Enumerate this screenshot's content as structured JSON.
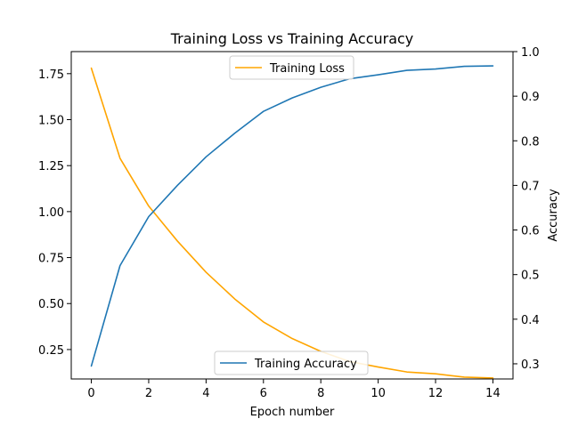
{
  "chart_data": {
    "type": "line",
    "title": "Training Loss vs Training Accuracy",
    "xlabel": "Epoch number",
    "ylabel_left": "",
    "ylabel_right": "Accuracy",
    "x": [
      0,
      1,
      2,
      3,
      4,
      5,
      6,
      7,
      8,
      9,
      10,
      11,
      12,
      13,
      14
    ],
    "xlim": [
      -0.7,
      14.7
    ],
    "xticks": [
      0,
      2,
      4,
      6,
      8,
      10,
      12,
      14
    ],
    "xtick_labels": [
      "0",
      "2",
      "4",
      "6",
      "8",
      "10",
      "12",
      "14"
    ],
    "ylim_left": [
      0.09,
      1.87
    ],
    "yticks_left": [
      0.25,
      0.5,
      0.75,
      1.0,
      1.25,
      1.5,
      1.75
    ],
    "ytick_labels_left": [
      "0.25",
      "0.50",
      "0.75",
      "1.00",
      "1.25",
      "1.50",
      "1.75"
    ],
    "ylim_right": [
      0.266,
      1.0
    ],
    "yticks_right": [
      0.3,
      0.4,
      0.5,
      0.6,
      0.7,
      0.8,
      0.9,
      1.0
    ],
    "ytick_labels_right": [
      "0.3",
      "0.4",
      "0.5",
      "0.6",
      "0.7",
      "0.8",
      "0.9",
      "1.0"
    ],
    "grid": false,
    "series": [
      {
        "name": "Training Loss",
        "axis": "left",
        "color": "#ffa500",
        "legend_position": "upper-center",
        "values": [
          1.78,
          1.29,
          1.03,
          0.84,
          0.67,
          0.525,
          0.4,
          0.31,
          0.24,
          0.185,
          0.155,
          0.128,
          0.118,
          0.1,
          0.095
        ]
      },
      {
        "name": "Training Accuracy",
        "axis": "right",
        "color": "#1f77b4",
        "legend_position": "lower-center",
        "values": [
          0.295,
          0.52,
          0.63,
          0.7,
          0.764,
          0.817,
          0.866,
          0.896,
          0.92,
          0.939,
          0.948,
          0.958,
          0.961,
          0.967,
          0.968
        ]
      }
    ]
  }
}
